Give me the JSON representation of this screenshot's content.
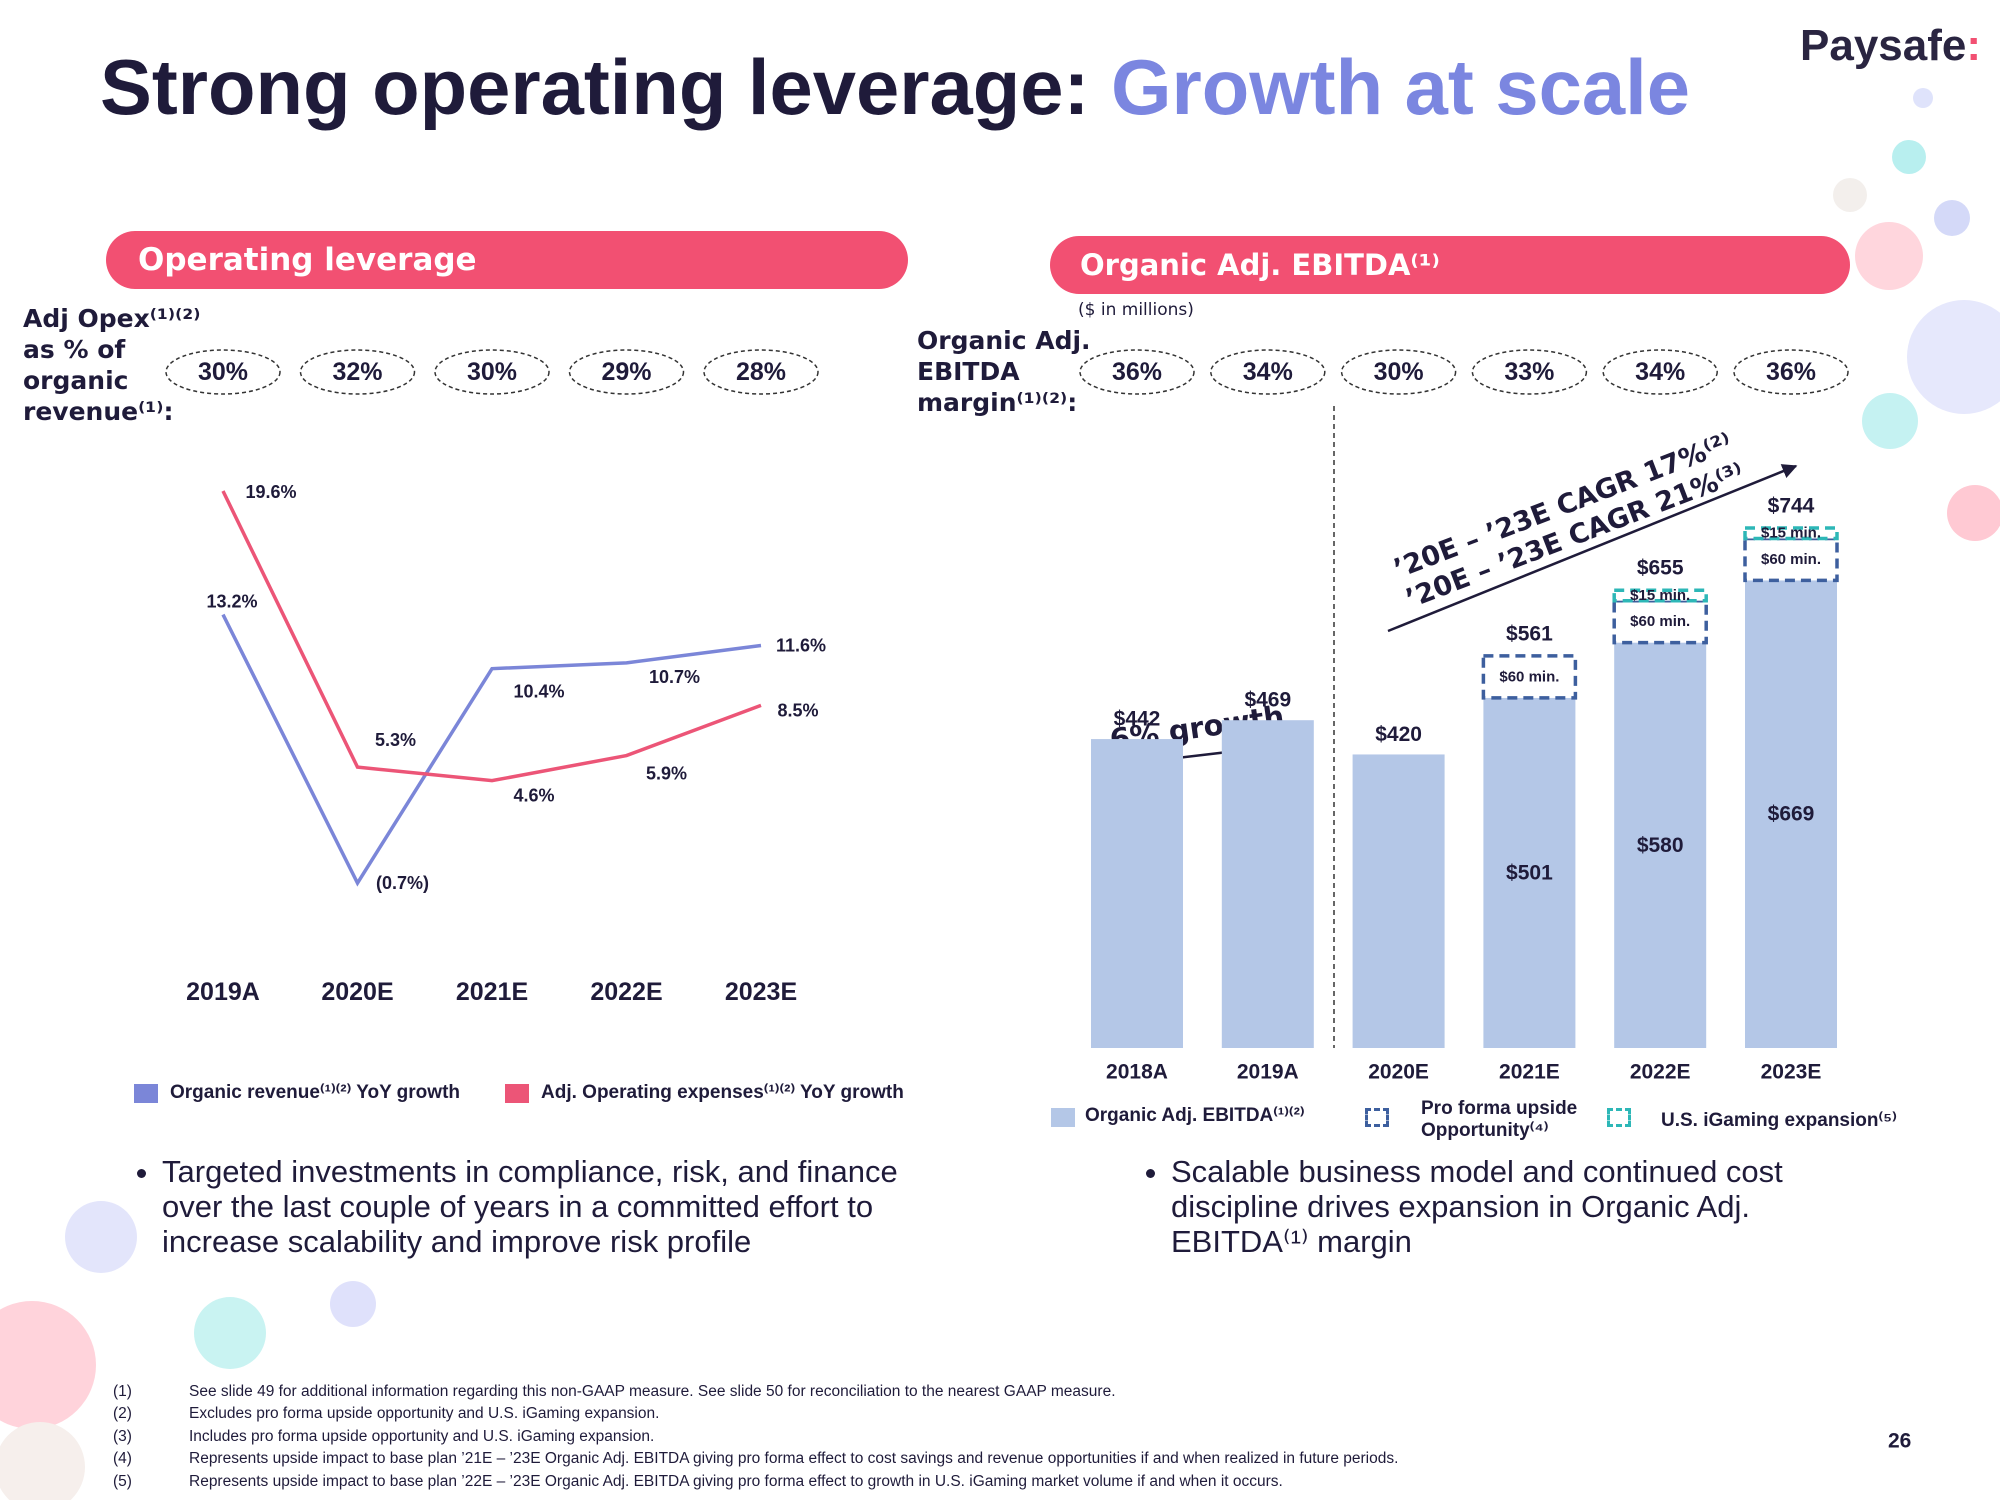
{
  "header": {
    "title": "Strong operating leverage: ",
    "title_highlight": "Growth at scale",
    "logo": "Paysafe",
    "logo_mark": ":"
  },
  "chart_data": [
    {
      "type": "line",
      "title": "Operating leverage",
      "margin_label": "Adj Opex⁽¹⁾⁽²⁾ as % of organic revenue⁽¹⁾:",
      "margin_values": [
        30,
        32,
        30,
        29,
        28
      ],
      "margin_value_labels": [
        "30%",
        "32%",
        "30%",
        "29%",
        "28%"
      ],
      "categories": [
        "2019A",
        "2020E",
        "2021E",
        "2022E",
        "2023E"
      ],
      "series": [
        {
          "name": "Organic revenue⁽¹⁾⁽²⁾ YoY growth",
          "color": "#7b86d8",
          "values": [
            13.2,
            -0.7,
            10.4,
            10.7,
            11.6
          ],
          "value_labels": [
            "13.2%",
            "(0.7%)",
            "10.4%",
            "10.7%",
            "11.6%"
          ]
        },
        {
          "name": "Adj. Operating expenses⁽¹⁾⁽²⁾ YoY growth",
          "color": "#ec5577",
          "values": [
            19.6,
            5.3,
            4.6,
            5.9,
            8.5
          ],
          "value_labels": [
            "19.6%",
            "5.3%",
            "4.6%",
            "5.9%",
            "8.5%"
          ]
        }
      ]
    },
    {
      "type": "bar",
      "stacked": true,
      "title": "Organic Adj. EBITDA⁽¹⁾",
      "subtitle": "($ in millions)",
      "margin_label": "Organic Adj. EBITDA margin⁽¹⁾⁽²⁾:",
      "margin_values": [
        36,
        34,
        30,
        33,
        34,
        36
      ],
      "margin_value_labels": [
        "36%",
        "34%",
        "30%",
        "33%",
        "34%",
        "36%"
      ],
      "categories": [
        "2018A",
        "2019A",
        "2020E",
        "2021E",
        "2022E",
        "2023E"
      ],
      "series": [
        {
          "name": "Organic Adj. EBITDA⁽¹⁾⁽²⁾",
          "color": "#b4c7e7",
          "values": [
            442,
            469,
            420,
            501,
            580,
            669
          ],
          "value_labels": [
            "$442",
            "$469",
            "$420",
            "$501",
            "$580",
            "$669"
          ]
        },
        {
          "name": "Pro forma upside Opportunity⁽⁴⁾",
          "color": "#3d5f9e",
          "values": [
            null,
            null,
            null,
            60,
            60,
            60
          ],
          "value_labels": [
            null,
            null,
            null,
            "$60 min.",
            "$60 min.",
            "$60 min."
          ]
        },
        {
          "name": "U.S. iGaming expansion⁽⁵⁾",
          "color": "#2db7b7",
          "values": [
            null,
            null,
            null,
            null,
            15,
            15
          ],
          "value_labels": [
            null,
            null,
            null,
            null,
            "$15 min.",
            "$15 min."
          ]
        }
      ],
      "totals": [
        null,
        null,
        null,
        561,
        655,
        744
      ],
      "total_labels": [
        null,
        null,
        null,
        "$561",
        "$655",
        "$744"
      ],
      "annotations": [
        "6% growth",
        "’20E – ’23E CAGR 17%⁽²⁾",
        "’20E – ’23E CAGR 21%⁽³⁾"
      ]
    }
  ],
  "bullets": [
    "Targeted investments in compliance, risk, and finance over the last couple of years in a committed effort to increase scalability and improve risk profile",
    "Scalable business model and continued cost discipline drives expansion in Organic Adj. EBITDA⁽¹⁾ margin"
  ],
  "footnotes": [
    {
      "marker": "(1)",
      "text": "See slide 49 for additional information regarding this non-GAAP measure. See slide 50 for reconciliation to the nearest GAAP measure."
    },
    {
      "marker": "(2)",
      "text": "Excludes pro forma upside opportunity and U.S. iGaming expansion."
    },
    {
      "marker": "(3)",
      "text": "Includes pro forma upside opportunity and U.S. iGaming expansion."
    },
    {
      "marker": "(4)",
      "text": "Represents upside impact to base plan ’21E – ’23E Organic Adj. EBITDA giving pro forma effect to cost savings and revenue opportunities if and when realized in future periods."
    },
    {
      "marker": "(5)",
      "text": "Represents upside impact to base plan ’22E – ’23E Organic Adj. EBITDA giving pro forma effect to growth in U.S. iGaming market volume if and when it occurs."
    }
  ],
  "page_number": "26"
}
